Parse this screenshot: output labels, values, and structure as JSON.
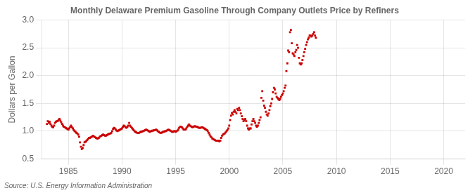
{
  "chart_data": {
    "type": "scatter",
    "title": "Monthly Delaware Premium Gasoline Through Company Outlets Price by Refiners",
    "y_label": "Dollars per Gallon",
    "annotation": "Source: U.S. Energy Information Administration",
    "color": "#cc0000",
    "marker": "square",
    "grid": true,
    "xlim": [
      1982.5,
      2022
    ],
    "ylim": [
      0.5,
      3.0
    ],
    "xticks": [
      1985,
      1990,
      1995,
      2000,
      2005,
      2010,
      2015,
      2020
    ],
    "yticks": [
      0.5,
      {
        "value": 1.0,
        "label": "1.0"
      },
      1.5,
      {
        "value": 2.0,
        "label": "2.0"
      },
      2.5,
      {
        "value": 3.0,
        "label": "3.0"
      }
    ],
    "x": [
      1983.0,
      1983.08,
      1983.17,
      1983.25,
      1983.33,
      1983.42,
      1983.5,
      1983.58,
      1983.67,
      1983.75,
      1983.83,
      1983.92,
      1984.0,
      1984.08,
      1984.17,
      1984.25,
      1984.33,
      1984.42,
      1984.5,
      1984.58,
      1984.67,
      1984.75,
      1984.83,
      1984.92,
      1985.0,
      1985.08,
      1985.17,
      1985.25,
      1985.33,
      1985.42,
      1985.5,
      1985.58,
      1985.67,
      1985.75,
      1985.83,
      1985.92,
      1986.0,
      1986.08,
      1986.17,
      1986.25,
      1986.33,
      1986.42,
      1986.5,
      1986.58,
      1986.67,
      1986.75,
      1986.83,
      1986.92,
      1987.0,
      1987.08,
      1987.17,
      1987.25,
      1987.33,
      1987.42,
      1987.5,
      1987.58,
      1987.67,
      1987.75,
      1987.83,
      1987.92,
      1988.0,
      1988.08,
      1988.17,
      1988.25,
      1988.33,
      1988.42,
      1988.5,
      1988.58,
      1988.67,
      1988.75,
      1988.83,
      1988.92,
      1989.0,
      1989.08,
      1989.17,
      1989.25,
      1989.33,
      1989.42,
      1989.5,
      1989.58,
      1989.67,
      1989.75,
      1989.83,
      1989.92,
      1990.0,
      1990.08,
      1990.17,
      1990.25,
      1990.33,
      1990.42,
      1990.5,
      1990.58,
      1990.67,
      1990.75,
      1990.83,
      1990.92,
      1991.0,
      1991.08,
      1991.17,
      1991.25,
      1991.33,
      1991.42,
      1991.5,
      1991.58,
      1991.67,
      1991.75,
      1991.83,
      1991.92,
      1992.0,
      1992.08,
      1992.17,
      1992.25,
      1992.33,
      1992.42,
      1992.5,
      1992.58,
      1992.67,
      1992.75,
      1992.83,
      1992.92,
      1993.0,
      1993.08,
      1993.17,
      1993.25,
      1993.33,
      1993.42,
      1993.5,
      1993.58,
      1993.67,
      1993.75,
      1993.83,
      1993.92,
      1994.0,
      1994.08,
      1994.17,
      1994.25,
      1994.33,
      1994.42,
      1994.5,
      1994.58,
      1994.67,
      1994.75,
      1994.83,
      1994.92,
      1995.0,
      1995.08,
      1995.17,
      1995.25,
      1995.33,
      1995.42,
      1995.5,
      1995.58,
      1995.67,
      1995.75,
      1995.83,
      1995.92,
      1996.0,
      1996.08,
      1996.17,
      1996.25,
      1996.33,
      1996.42,
      1996.5,
      1996.58,
      1996.67,
      1996.75,
      1996.83,
      1996.92,
      1997.0,
      1997.08,
      1997.17,
      1997.25,
      1997.33,
      1997.42,
      1997.5,
      1997.58,
      1997.67,
      1997.75,
      1997.83,
      1997.92,
      1998.0,
      1998.08,
      1998.17,
      1998.25,
      1998.33,
      1998.42,
      1998.5,
      1998.58,
      1998.67,
      1998.75,
      1998.83,
      1998.92,
      1999.0,
      1999.08,
      1999.17,
      1999.25,
      1999.33,
      1999.42,
      1999.5,
      1999.58,
      1999.67,
      1999.75,
      1999.83,
      1999.92,
      2000.0,
      2000.08,
      2000.17,
      2000.25,
      2000.33,
      2000.42,
      2000.5,
      2000.58,
      2000.67,
      2000.75,
      2000.83,
      2000.92,
      2001.0,
      2001.08,
      2001.17,
      2001.25,
      2001.33,
      2001.42,
      2001.5,
      2001.58,
      2001.67,
      2001.75,
      2001.83,
      2001.92,
      2002.0,
      2002.08,
      2002.17,
      2002.25,
      2002.33,
      2002.42,
      2002.5,
      2002.58,
      2002.67,
      2002.75,
      2002.83,
      2002.92,
      2003.0,
      2003.08,
      2003.17,
      2003.25,
      2003.33,
      2003.42,
      2003.5,
      2003.58,
      2003.67,
      2003.75,
      2003.83,
      2003.92,
      2004.0,
      2004.08,
      2004.17,
      2004.25,
      2004.33,
      2004.42,
      2004.5,
      2004.58,
      2004.67,
      2004.75,
      2004.83,
      2004.92,
      2005.0,
      2005.08,
      2005.17,
      2005.25,
      2005.33,
      2005.42,
      2005.5,
      2005.58,
      2005.67,
      2005.75,
      2005.83,
      2005.92,
      2006.0,
      2006.08,
      2006.17,
      2006.25,
      2006.33,
      2006.42,
      2006.5,
      2006.58,
      2006.67,
      2006.75,
      2006.83,
      2006.92,
      2007.0,
      2007.08,
      2007.17,
      2007.25,
      2007.33,
      2007.42,
      2007.5,
      2007.58,
      2007.67,
      2007.75,
      2007.83,
      2007.92,
      2008.0,
      2008.08
    ],
    "values": [
      1.13,
      1.18,
      1.15,
      1.17,
      1.13,
      1.1,
      1.08,
      1.07,
      1.1,
      1.15,
      1.17,
      1.18,
      1.18,
      1.2,
      1.22,
      1.19,
      1.16,
      1.13,
      1.1,
      1.08,
      1.07,
      1.06,
      1.05,
      1.04,
      1.03,
      1.05,
      1.08,
      1.1,
      1.07,
      1.05,
      1.02,
      1.0,
      0.99,
      0.97,
      0.96,
      0.94,
      0.9,
      0.8,
      0.72,
      0.68,
      0.7,
      0.75,
      0.8,
      0.81,
      0.82,
      0.84,
      0.86,
      0.88,
      0.88,
      0.89,
      0.9,
      0.91,
      0.92,
      0.9,
      0.89,
      0.88,
      0.87,
      0.87,
      0.88,
      0.9,
      0.91,
      0.92,
      0.93,
      0.94,
      0.93,
      0.92,
      0.92,
      0.93,
      0.94,
      0.95,
      0.95,
      0.96,
      0.97,
      1.0,
      1.04,
      1.06,
      1.05,
      1.03,
      1.01,
      1.0,
      1.01,
      1.02,
      1.03,
      1.04,
      1.05,
      1.08,
      1.1,
      1.09,
      1.07,
      1.06,
      1.08,
      1.1,
      1.15,
      1.1,
      1.08,
      1.06,
      1.04,
      1.02,
      1.0,
      0.99,
      0.98,
      0.97,
      0.97,
      0.97,
      0.98,
      0.99,
      0.99,
      1.0,
      1.0,
      1.01,
      1.02,
      1.03,
      1.02,
      1.01,
      1.0,
      0.99,
      1.0,
      1.0,
      1.01,
      1.01,
      1.02,
      1.02,
      1.03,
      1.02,
      1.0,
      0.99,
      0.98,
      0.97,
      0.97,
      0.98,
      0.99,
      0.99,
      1.0,
      1.0,
      1.01,
      1.02,
      1.03,
      1.02,
      1.01,
      1.0,
      0.99,
      0.99,
      1.0,
      1.0,
      0.99,
      1.0,
      1.01,
      1.03,
      1.06,
      1.08,
      1.08,
      1.07,
      1.05,
      1.03,
      1.03,
      1.03,
      1.05,
      1.08,
      1.1,
      1.12,
      1.1,
      1.09,
      1.08,
      1.07,
      1.08,
      1.09,
      1.09,
      1.08,
      1.08,
      1.07,
      1.06,
      1.06,
      1.06,
      1.07,
      1.07,
      1.06,
      1.05,
      1.04,
      1.03,
      1.02,
      1.0,
      0.97,
      0.94,
      0.91,
      0.89,
      0.87,
      0.86,
      0.85,
      0.84,
      0.83,
      0.83,
      0.83,
      0.83,
      0.82,
      0.83,
      0.88,
      0.92,
      0.94,
      0.95,
      0.96,
      0.98,
      1.0,
      1.02,
      1.05,
      1.1,
      1.2,
      1.28,
      1.33,
      1.3,
      1.35,
      1.38,
      1.35,
      1.32,
      1.4,
      1.38,
      1.42,
      1.38,
      1.32,
      1.27,
      1.22,
      1.18,
      1.2,
      1.22,
      1.18,
      1.1,
      1.05,
      1.03,
      1.05,
      1.05,
      1.12,
      1.18,
      1.22,
      1.18,
      1.15,
      1.1,
      1.08,
      1.1,
      1.15,
      1.2,
      1.25,
      1.6,
      1.72,
      1.55,
      1.46,
      1.42,
      1.35,
      1.3,
      1.28,
      1.32,
      1.38,
      1.45,
      1.5,
      1.58,
      1.7,
      1.78,
      1.75,
      1.68,
      1.62,
      1.6,
      1.58,
      1.56,
      1.58,
      1.62,
      1.65,
      1.68,
      1.72,
      1.78,
      1.82,
      2.08,
      2.22,
      2.45,
      2.42,
      2.78,
      2.82,
      2.58,
      2.4,
      2.38,
      2.35,
      2.42,
      2.46,
      2.55,
      2.5,
      2.32,
      2.22,
      2.2,
      2.22,
      2.28,
      2.35,
      2.42,
      2.48,
      2.55,
      2.6,
      2.65,
      2.68,
      2.72,
      2.72,
      2.7,
      2.72,
      2.75,
      2.78,
      2.72,
      2.68
    ]
  }
}
